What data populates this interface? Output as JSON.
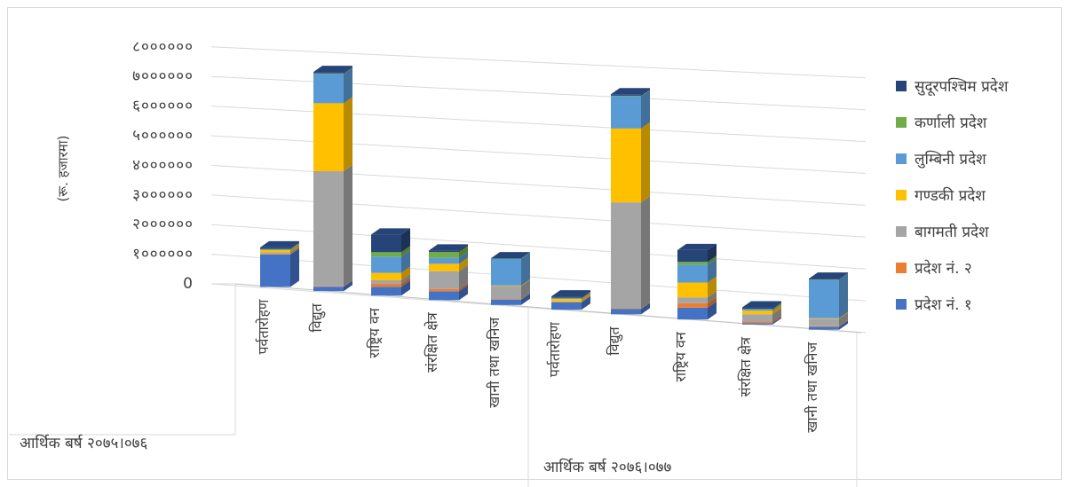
{
  "chart_data": {
    "type": "bar",
    "stacked": true,
    "ylabel": "(रू. हजारमा)",
    "ylim": [
      0,
      800000
    ],
    "y_ticks": [
      {
        "value": 0,
        "label": "0"
      },
      {
        "value": 100000,
        "label": "१००००००"
      },
      {
        "value": 200000,
        "label": "२००००००"
      },
      {
        "value": 300000,
        "label": "३००००००"
      },
      {
        "value": 400000,
        "label": "४००००००"
      },
      {
        "value": 500000,
        "label": "५००००००"
      },
      {
        "value": 600000,
        "label": "६००००००"
      },
      {
        "value": 700000,
        "label": "७००००००"
      },
      {
        "value": 800000,
        "label": "८००००००"
      }
    ],
    "groups": [
      {
        "label": "आर्थिक बर्ष २०७५।०७६",
        "categories": [
          "पर्वतारोहण",
          "विद्युत",
          "राष्ट्रिय वन",
          "संरक्षित क्षेत्र",
          "खानी तथा खनिज"
        ]
      },
      {
        "label": "आर्थिक बर्ष २०७६।०७७",
        "categories": [
          "पर्वतारोहण",
          "विद्युत",
          "राष्ट्रिय वन",
          "संरक्षित क्षेत्र",
          "खानी तथा खनिज"
        ]
      }
    ],
    "series": [
      {
        "name": "प्रदेश नं. १",
        "color": "#4472C4",
        "values": [
          110000,
          15000,
          30000,
          30000,
          18000,
          25000,
          18000,
          40000,
          5000,
          10000
        ]
      },
      {
        "name": "प्रदेश नं. २",
        "color": "#ED7D31",
        "values": [
          2000,
          1000,
          10000,
          8000,
          1000,
          1000,
          1000,
          15000,
          5000,
          2000
        ]
      },
      {
        "name": "बागमती प्रदेश",
        "color": "#A5A5A5",
        "values": [
          5000,
          390000,
          12000,
          60000,
          45000,
          2000,
          360000,
          20000,
          25000,
          25000
        ]
      },
      {
        "name": "गण्डकी प्रदेश",
        "color": "#FFC000",
        "values": [
          8000,
          230000,
          25000,
          25000,
          2000,
          8000,
          250000,
          50000,
          12000,
          2000
        ]
      },
      {
        "name": "लुम्बिनी प्रदेश",
        "color": "#5B9BD5",
        "values": [
          3000,
          100000,
          55000,
          20000,
          90000,
          3000,
          110000,
          60000,
          5000,
          130000
        ]
      },
      {
        "name": "कर्णाली प्रदेश",
        "color": "#70AD47",
        "values": [
          1000,
          1000,
          15000,
          20000,
          1000,
          1000,
          1000,
          10000,
          1000,
          1000
        ]
      },
      {
        "name": "सुदूरपश्चिम प्रदेश",
        "color": "#264478",
        "values": [
          5000,
          5000,
          60000,
          5000,
          1000,
          5000,
          5000,
          40000,
          5000,
          3000
        ]
      }
    ],
    "legend": "right",
    "grid": true
  }
}
